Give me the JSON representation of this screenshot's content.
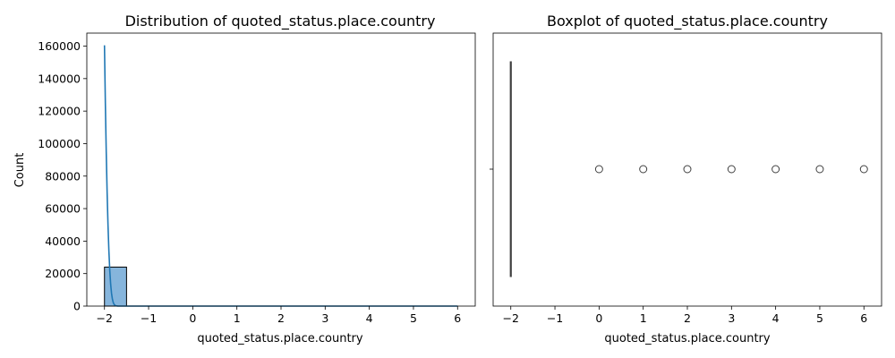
{
  "chart_data": [
    {
      "type": "histogram",
      "title": "Distribution of quoted_status.place.country",
      "xlabel": "quoted_status.place.country",
      "ylabel": "Count",
      "xlim": [
        -2.4,
        6.4
      ],
      "ylim": [
        0,
        168000
      ],
      "xticks": [
        "−2",
        "−1",
        "0",
        "1",
        "2",
        "3",
        "4",
        "5",
        "6"
      ],
      "yticks": [
        "0",
        "20000",
        "40000",
        "60000",
        "80000",
        "100000",
        "120000",
        "140000",
        "160000"
      ],
      "bins": [
        {
          "x0": -2.0,
          "x1": -1.5,
          "count": 24000
        },
        {
          "x0": -1.5,
          "x1": -1.0,
          "count": 0
        },
        {
          "x0": -1.0,
          "x1": -0.5,
          "count": 0
        },
        {
          "x0": -0.5,
          "x1": 0.0,
          "count": 0
        },
        {
          "x0": 0.0,
          "x1": 0.5,
          "count": 40
        },
        {
          "x0": 0.5,
          "x1": 1.0,
          "count": 0
        },
        {
          "x0": 1.0,
          "x1": 1.5,
          "count": 60
        },
        {
          "x0": 1.5,
          "x1": 2.0,
          "count": 0
        },
        {
          "x0": 2.0,
          "x1": 2.5,
          "count": 10
        },
        {
          "x0": 2.5,
          "x1": 3.0,
          "count": 0
        },
        {
          "x0": 3.0,
          "x1": 3.5,
          "count": 10
        },
        {
          "x0": 3.5,
          "x1": 4.0,
          "count": 0
        },
        {
          "x0": 4.0,
          "x1": 4.5,
          "count": 10
        },
        {
          "x0": 4.5,
          "x1": 5.0,
          "count": 0
        },
        {
          "x0": 5.0,
          "x1": 5.5,
          "count": 30
        },
        {
          "x0": 5.5,
          "x1": 6.0,
          "count": 50
        }
      ],
      "kde": {
        "x": [
          -2.0,
          -1.98,
          -1.96,
          -1.94,
          -1.92,
          -1.9,
          -1.88,
          -1.86,
          -1.84,
          -1.82,
          -1.8,
          -1.78,
          -1.76,
          -1.74,
          -1.72,
          -1.7,
          -1.65,
          -1.6,
          -1.5,
          -1.0,
          0.0,
          1.0,
          2.0,
          3.0,
          4.0,
          5.0,
          6.0
        ],
        "y": [
          160500,
          125000,
          95000,
          70000,
          50000,
          34000,
          22000,
          13500,
          7800,
          4200,
          2100,
          1000,
          450,
          200,
          80,
          30,
          5,
          0,
          0,
          0,
          0,
          0,
          0,
          0,
          0,
          0,
          0
        ]
      },
      "colors": {
        "bar": "#86b5dc",
        "edge": "#000000",
        "line": "#1f77b4"
      }
    },
    {
      "type": "boxplot",
      "title": "Boxplot of quoted_status.place.country",
      "xlabel": "quoted_status.place.country",
      "xlim": [
        -2.4,
        6.4
      ],
      "xticks": [
        "−2",
        "−1",
        "0",
        "1",
        "2",
        "3",
        "4",
        "5",
        "6"
      ],
      "box": {
        "whisker_low": -2,
        "q1": -2,
        "median": -2,
        "q3": -2,
        "whisker_high": -2
      },
      "outliers": [
        0,
        1,
        2,
        3,
        4,
        5,
        6
      ],
      "colors": {
        "box": "#1f77b4",
        "line": "#3f3f3f"
      }
    }
  ]
}
